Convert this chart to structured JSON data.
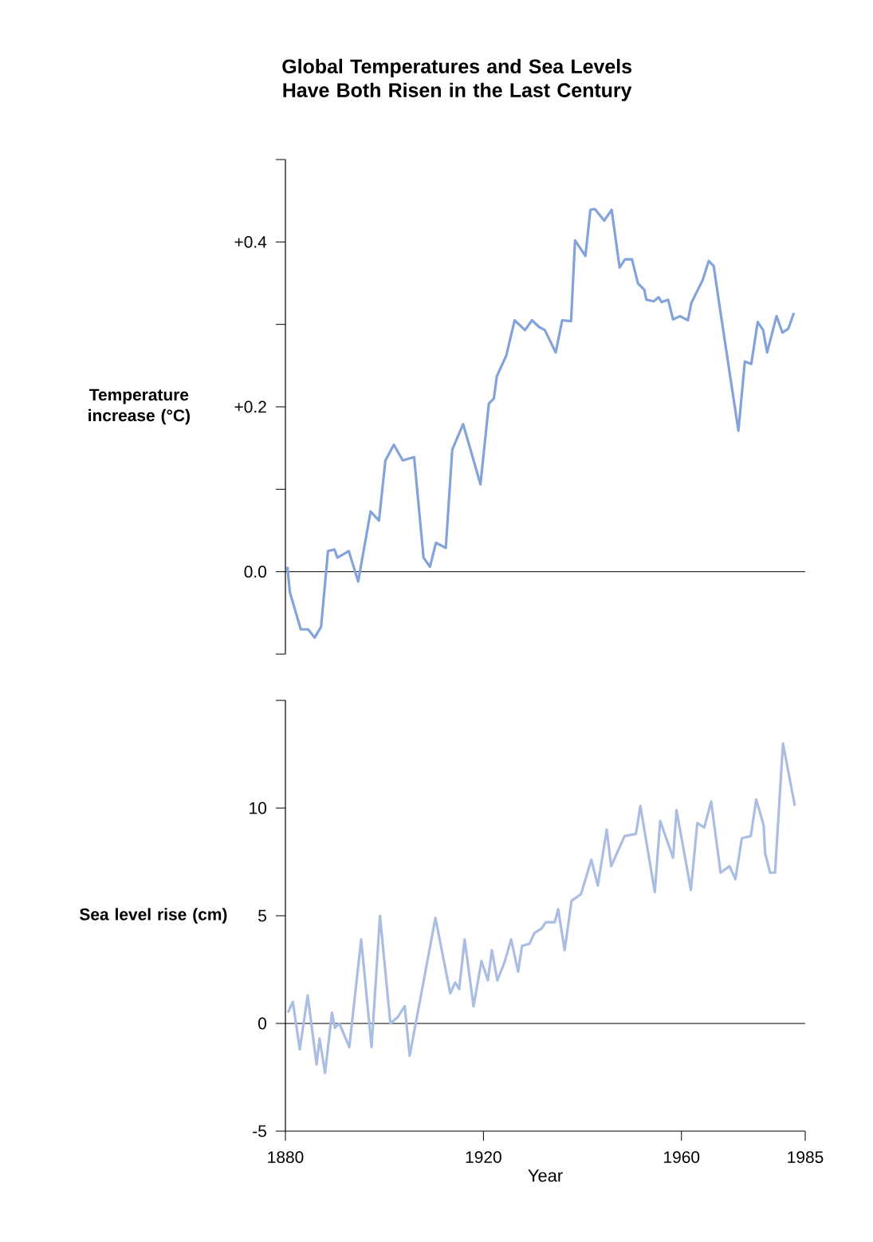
{
  "chart_data": [
    {
      "type": "line",
      "title": "Global Temperatures and Sea Levels Have Both Risen in the Last Century",
      "ylabel": "Temperature increase (°C)",
      "xlim": [
        1880,
        1985
      ],
      "ylim": [
        -0.1,
        0.5
      ],
      "yticks": [
        {
          "value": -0.1,
          "label": null
        },
        {
          "value": 0.0,
          "label": "0.0"
        },
        {
          "value": 0.1,
          "label": null
        },
        {
          "value": 0.2,
          "label": "+0.2"
        },
        {
          "value": 0.3,
          "label": null
        },
        {
          "value": 0.4,
          "label": "+0.4"
        },
        {
          "value": 0.5,
          "label": null
        }
      ],
      "tick_labels": "y",
      "marker": "none",
      "line_style": "solid",
      "ref_lines": [
        {
          "axis": "y",
          "value": 0
        }
      ],
      "x": [
        1880.4,
        1880.9,
        1883.1,
        1884.6,
        1885.9,
        1887.2,
        1888.6,
        1889.9,
        1890.5,
        1892.8,
        1894.7,
        1897.2,
        1898.9,
        1900.2,
        1901.9,
        1903.7,
        1906.0,
        1907.9,
        1909.2,
        1910.4,
        1912.4,
        1913.7,
        1915.9,
        1919.4,
        1921.1,
        1922.1,
        1922.7,
        1924.6,
        1926.3,
        1928.4,
        1929.8,
        1931.2,
        1932.4,
        1934.6,
        1935.9,
        1937.7,
        1938.5,
        1940.6,
        1941.6,
        1942.5,
        1944.4,
        1945.9,
        1947.5,
        1948.6,
        1950.0,
        1951.2,
        1952.5,
        1952.9,
        1954.4,
        1955.4,
        1956.0,
        1957.3,
        1958.3,
        1959.7,
        1961.3,
        1962.0,
        1964.3,
        1965.5,
        1966.5,
        1967.6,
        1971.5,
        1972.8,
        1974.1,
        1975.4,
        1976.5,
        1977.3,
        1979.2,
        1980.4,
        1981.6,
        1982.7
      ],
      "series": [
        {
          "color": "#84a3da",
          "values": [
            0.006,
            -0.025,
            -0.07,
            -0.07,
            -0.08,
            -0.067,
            0.025,
            0.027,
            0.017,
            0.025,
            -0.012,
            0.073,
            0.062,
            0.135,
            0.154,
            0.135,
            0.139,
            0.017,
            0.006,
            0.035,
            0.029,
            0.148,
            0.179,
            0.106,
            0.204,
            0.21,
            0.237,
            0.262,
            0.305,
            0.293,
            0.305,
            0.297,
            0.293,
            0.266,
            0.305,
            0.304,
            0.402,
            0.383,
            0.439,
            0.44,
            0.426,
            0.439,
            0.369,
            0.379,
            0.379,
            0.35,
            0.342,
            0.33,
            0.328,
            0.333,
            0.327,
            0.33,
            0.306,
            0.31,
            0.305,
            0.326,
            0.354,
            0.377,
            0.371,
            0.326,
            0.171,
            0.255,
            0.252,
            0.303,
            0.293,
            0.266,
            0.31,
            0.29,
            0.295,
            0.314
          ]
        }
      ]
    },
    {
      "type": "line",
      "ylabel": "Sea level rise (cm)",
      "xlabel": "Year",
      "xlim": [
        1880,
        1985
      ],
      "xticks": [
        1880,
        1920,
        1960,
        1985
      ],
      "ylim": [
        -5,
        15
      ],
      "yticks": [
        -5,
        0,
        5,
        10,
        {
          "value": 15,
          "label": null
        }
      ],
      "marker": "none",
      "line_style": "solid",
      "ref_lines": [
        {
          "axis": "y",
          "value": 0
        }
      ],
      "x": [
        1880.5,
        1881.5,
        1882.9,
        1884.5,
        1886.3,
        1886.9,
        1888.0,
        1889.4,
        1890.0,
        1890.9,
        1892.9,
        1895.3,
        1897.4,
        1899.1,
        1901.2,
        1902.7,
        1904.1,
        1905.1,
        1910.3,
        1913.3,
        1914.3,
        1915.1,
        1916.2,
        1918.0,
        1919.6,
        1920.9,
        1921.7,
        1922.8,
        1924.2,
        1925.6,
        1927.0,
        1927.8,
        1929.3,
        1930.3,
        1931.7,
        1932.6,
        1934.4,
        1935.1,
        1936.4,
        1937.8,
        1939.7,
        1941.8,
        1943.1,
        1944.9,
        1945.8,
        1948.5,
        1950.8,
        1951.7,
        1954.6,
        1955.7,
        1958.3,
        1959.0,
        1961.9,
        1963.2,
        1964.6,
        1966.0,
        1967.9,
        1969.7,
        1970.9,
        1972.2,
        1974.0,
        1975.1,
        1976.6,
        1976.9,
        1977.9,
        1978.9,
        1980.5,
        1982.9
      ],
      "series": [
        {
          "color": "#aabde2",
          "values": [
            0.5,
            1.0,
            -1.2,
            1.3,
            -1.9,
            -0.7,
            -2.3,
            0.5,
            -0.2,
            0.0,
            -1.1,
            3.9,
            -1.1,
            5.0,
            0.0,
            0.3,
            0.8,
            -1.5,
            4.9,
            1.4,
            1.9,
            1.6,
            3.9,
            0.8,
            2.9,
            2.0,
            3.4,
            2.0,
            2.8,
            3.9,
            2.4,
            3.6,
            3.7,
            4.2,
            4.4,
            4.7,
            4.7,
            5.3,
            3.4,
            5.7,
            6.0,
            7.6,
            6.4,
            9.0,
            7.3,
            8.7,
            8.8,
            10.1,
            6.1,
            9.4,
            7.7,
            9.9,
            6.2,
            9.3,
            9.1,
            10.3,
            7.0,
            7.3,
            6.7,
            8.6,
            8.7,
            10.4,
            9.2,
            7.9,
            7.0,
            7.0,
            13.0,
            10.1
          ]
        }
      ]
    }
  ]
}
